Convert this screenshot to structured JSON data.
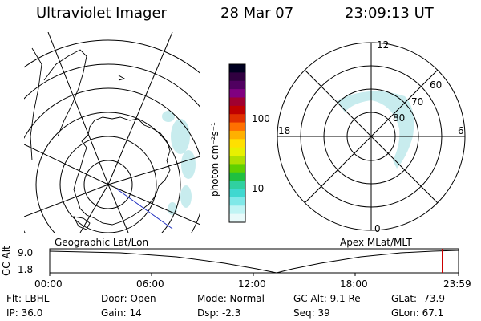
{
  "header": {
    "instrument": "Ultraviolet Imager",
    "date": "28 Mar 07",
    "time": "23:09:13 UT"
  },
  "left_panel": {
    "caption": "Geographic Lat/Lon"
  },
  "colorbar": {
    "unit_label": "photon cm⁻²s⁻¹",
    "ticks": [
      "100",
      "10"
    ],
    "colors": [
      "#000020",
      "#300040",
      "#500060",
      "#800080",
      "#a00030",
      "#c00000",
      "#e03000",
      "#ff7000",
      "#ffb000",
      "#ffe000",
      "#e8f000",
      "#b0e000",
      "#60d000",
      "#20c040",
      "#30d0a0",
      "#40d8d0",
      "#80e8e8",
      "#c0f4f4",
      "#e8fafa"
    ]
  },
  "right_panel": {
    "caption": "Apex MLat/MLT",
    "mlt_labels": {
      "top": "12",
      "left": "18",
      "right": "6",
      "bottom": "0"
    },
    "lat_labels": [
      "60",
      "70",
      "80"
    ]
  },
  "timeline": {
    "ylabel": "GC Alt",
    "y_ticks": [
      "9.0",
      "1.8"
    ],
    "x_ticks": [
      "00:00",
      "06:00",
      "12:00",
      "18:00",
      "23:59"
    ],
    "current_marker_fraction": 0.96
  },
  "info": {
    "filter": "Flt: LBHL",
    "ip": "IP: 36.0",
    "door": "Door: Open",
    "gain": "Gain: 14",
    "mode": "Mode: Normal",
    "dsp": "Dsp:    -2.3",
    "gc_alt": "GC Alt: 9.1 Re",
    "seq": "Seq: 39",
    "glat": "GLat: -73.9",
    "glon": "GLon:  67.1"
  }
}
